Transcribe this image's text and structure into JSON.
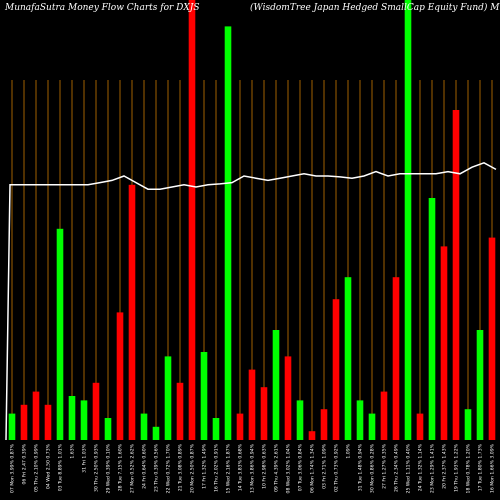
{
  "chart_data": {
    "type": "bar",
    "title_left": "MunafaSutra  Money Flow  Charts for DXJS",
    "title_right": "(WisdomTree   Japan   Hedged SmallCap Equity Fund) MunafaSutra.com",
    "ylim": [
      0,
      100
    ],
    "colors": {
      "up": "#00ff00",
      "down": "#ff0000",
      "line": "#ffffff",
      "grid": "#c87800",
      "background": "#000000"
    },
    "bars": [
      {
        "label": "07 Mon 3.99% 0.87%",
        "value": 6,
        "dir": "up"
      },
      {
        "label": "06 Fri 2.47 0.39%",
        "value": 8,
        "dir": "down"
      },
      {
        "label": "05 Thu 2.10% 0.99%",
        "value": 11,
        "dir": "down"
      },
      {
        "label": "04 Wed 2.50 0.73%",
        "value": 8,
        "dir": "down"
      },
      {
        "label": "03 Tue 8.89% 1.01%",
        "value": 48,
        "dir": "up"
      },
      {
        "label": "1.63%",
        "value": 10,
        "dir": "up"
      },
      {
        "label": "31 Fri 1.03%",
        "value": 9,
        "dir": "up"
      },
      {
        "label": "30 Thu 2.50% 0.93%",
        "value": 13,
        "dir": "down"
      },
      {
        "label": "29 Wed 0.39% 0.10%",
        "value": 5,
        "dir": "up"
      },
      {
        "label": "28 Tue 7.15% 1.60%",
        "value": 29,
        "dir": "down"
      },
      {
        "label": "27 Mon 0.52% 2.62%",
        "value": 58,
        "dir": "down"
      },
      {
        "label": "24 Fri 0.64% 0.60%",
        "value": 6,
        "dir": "up"
      },
      {
        "label": "23 Thu 0.39% 0.56%",
        "value": 3,
        "dir": "up"
      },
      {
        "label": "22 Wed 0.72% 1.70%",
        "value": 19,
        "dir": "up"
      },
      {
        "label": "21 Tue 3.08% 0.89%",
        "value": 13,
        "dir": "down"
      },
      {
        "label": "20 Mon 2.50% 0.87%",
        "value": 100,
        "dir": "down"
      },
      {
        "label": "17 Fri 1.32% 1.49%",
        "value": 20,
        "dir": "up"
      },
      {
        "label": "16 Thu 2.02% 0.91%",
        "value": 5,
        "dir": "up"
      },
      {
        "label": "15 Wed 2.16% 1.87%",
        "value": 94,
        "dir": "up"
      },
      {
        "label": "14 Tue 3.83% 0.68%",
        "value": 6,
        "dir": "down"
      },
      {
        "label": "13 Mon 3.86% 0.94%",
        "value": 16,
        "dir": "down"
      },
      {
        "label": "10 Fri 2.98% 0.63%",
        "value": 12,
        "dir": "down"
      },
      {
        "label": "09 Thu 4.39% 2.61%",
        "value": 25,
        "dir": "up"
      },
      {
        "label": "08 Wed 3.02% 1.04%",
        "value": 19,
        "dir": "down"
      },
      {
        "label": "07 Tue 3.06% 0.84%",
        "value": 9,
        "dir": "up"
      },
      {
        "label": "06 Mon 1.74% 1.34%",
        "value": 2,
        "dir": "down"
      },
      {
        "label": "03 Fri 2.71% 1.09%",
        "value": 7,
        "dir": "down"
      },
      {
        "label": "02 Thu 0.73% 0.92%",
        "value": 32,
        "dir": "down"
      },
      {
        "label": "1.09%",
        "value": 37,
        "dir": "up"
      },
      {
        "label": "31 Tue 1.48% 0.94%",
        "value": 9,
        "dir": "up"
      },
      {
        "label": "30 Mon 0.86% 0.28%",
        "value": 6,
        "dir": "up"
      },
      {
        "label": "27 Fri 1.27% 0.35%",
        "value": 11,
        "dir": "down"
      },
      {
        "label": "26 Thu 2.34% 0.49%",
        "value": 37,
        "dir": "down"
      },
      {
        "label": "25 Wed 1.11% 0.40%",
        "value": 100,
        "dir": "up"
      },
      {
        "label": "24 Tue 1.32% 1.14%",
        "value": 6,
        "dir": "down"
      },
      {
        "label": "23 Mon 1.29% 1.41%",
        "value": 55,
        "dir": "up"
      },
      {
        "label": "20 Fri 2.37% 1.43%",
        "value": 44,
        "dir": "down"
      },
      {
        "label": "19 Thu 1.93% 1.22%",
        "value": 75,
        "dir": "down"
      },
      {
        "label": "18 Wed 0.78% 1.20%",
        "value": 7,
        "dir": "up"
      },
      {
        "label": "17 Tue 1.80% 1.73%",
        "value": 25,
        "dir": "up"
      },
      {
        "label": "16 Mon 1.66% 3.09%",
        "value": 46,
        "dir": "down"
      }
    ],
    "price_line": [
      58,
      58,
      58,
      58,
      58,
      58,
      58,
      58,
      58.5,
      59,
      60,
      58.5,
      57,
      57,
      57.5,
      58,
      57.5,
      58,
      58.2,
      58.5,
      60,
      59.5,
      59,
      59.5,
      60,
      60.5,
      60,
      60,
      59.8,
      59.5,
      60,
      61,
      60,
      60.5,
      60.5,
      60.5,
      60.5,
      61,
      60.5,
      62,
      63,
      61.5
    ]
  }
}
